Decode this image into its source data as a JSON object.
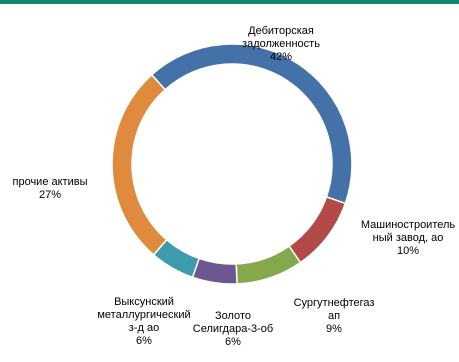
{
  "theme": {
    "accent_rule_color": "#12866c"
  },
  "chart_data": {
    "type": "pie",
    "style": "donut",
    "title": "",
    "slices": [
      {
        "label": "Дебиторская\nзадолженность",
        "percent_label": "42%",
        "value": 42,
        "color": "#4472a8"
      },
      {
        "label": "Машиностроитель\nный завод, ао",
        "percent_label": "10%",
        "value": 10,
        "color": "#b14a48"
      },
      {
        "label": "Сургутнефтегаз\nап",
        "percent_label": "9%",
        "value": 9,
        "color": "#86a84c"
      },
      {
        "label": "Золото\nСелигдара-3-об",
        "percent_label": "6%",
        "value": 6,
        "color": "#6c5793"
      },
      {
        "label": "Выксунский\nметаллургический\nз-д ао",
        "percent_label": "6%",
        "value": 6,
        "color": "#3d9bad"
      },
      {
        "label": "прочие активы",
        "percent_label": "27%",
        "value": 27,
        "color": "#df8a3d"
      }
    ]
  }
}
